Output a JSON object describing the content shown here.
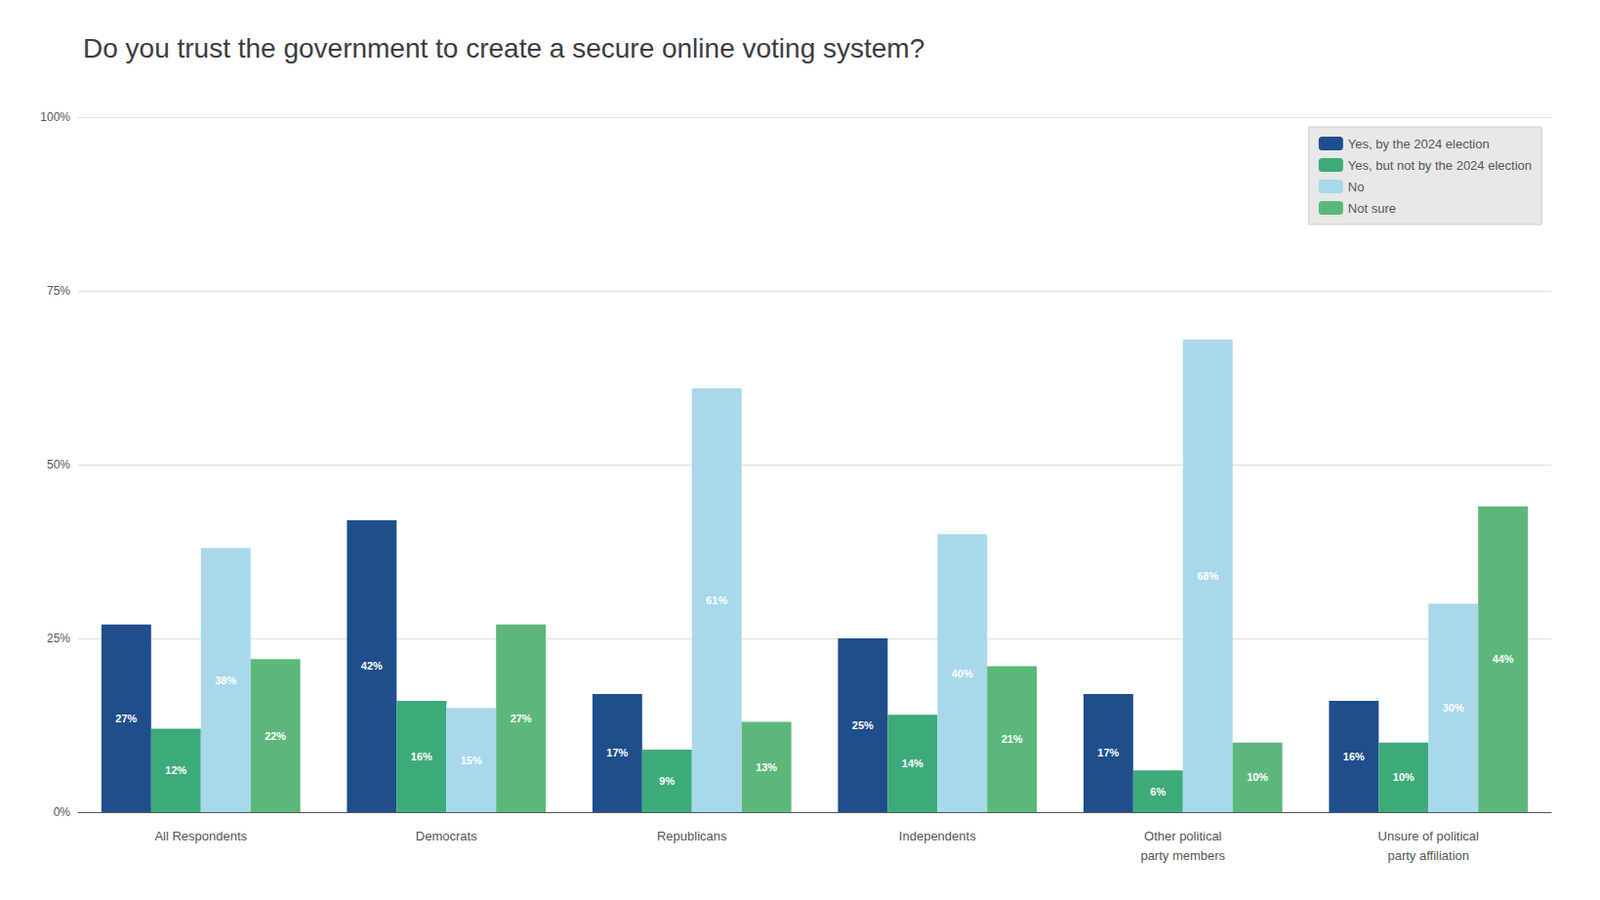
{
  "chart_data": {
    "type": "bar",
    "title": "Do you trust the government to create a secure online voting system?",
    "categories": [
      "All Respondents",
      "Democrats",
      "Republicans",
      "Independents",
      "Other political\nparty members",
      "Unsure of political\nparty affiliation"
    ],
    "series": [
      {
        "name": "Yes, by the 2024 election",
        "color": "#1f4e8c",
        "values": [
          27,
          42,
          17,
          25,
          17,
          16
        ],
        "value_labels": [
          "27%",
          "42%",
          "17%",
          "25%",
          "17%",
          "16%"
        ]
      },
      {
        "name": "Yes, but not by the 2024 election",
        "color": "#3daa7a",
        "values": [
          12,
          16,
          9,
          14,
          6,
          10
        ],
        "value_labels": [
          "12%",
          "16%",
          "9%",
          "14%",
          "6%",
          "10%"
        ]
      },
      {
        "name": "No",
        "color": "#a8d8ea",
        "values": [
          38,
          15,
          61,
          40,
          68,
          30
        ],
        "value_labels": [
          "38%",
          "15%",
          "61%",
          "40%",
          "68%",
          "30%"
        ]
      },
      {
        "name": "Not sure",
        "color": "#5cb87a",
        "values": [
          22,
          27,
          13,
          21,
          10,
          44
        ],
        "value_labels": [
          "22%",
          "27%",
          "13%",
          "21%",
          "10%",
          "44%"
        ]
      }
    ],
    "ylim": [
      0,
      100
    ],
    "yticks": [
      {
        "value": 0,
        "label": "0%"
      },
      {
        "value": 25,
        "label": "25%"
      },
      {
        "value": 50,
        "label": "50%"
      },
      {
        "value": 75,
        "label": "75%"
      },
      {
        "value": 100,
        "label": "100%"
      }
    ],
    "grid": true,
    "legend": "upper right",
    "data_labels": true
  }
}
